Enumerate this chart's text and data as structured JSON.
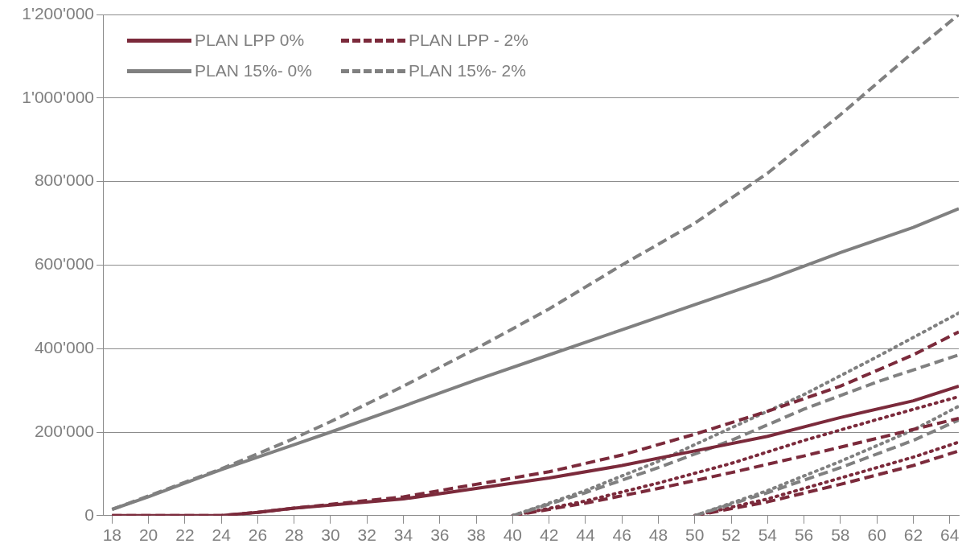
{
  "chart_data": {
    "type": "line",
    "legend": "top left",
    "grid": "y",
    "marker": "none",
    "xlim": [
      17.5,
      64.5
    ],
    "xticks": [
      18,
      20,
      22,
      24,
      26,
      28,
      30,
      32,
      34,
      36,
      38,
      40,
      42,
      44,
      46,
      48,
      50,
      52,
      54,
      56,
      58,
      60,
      62,
      64
    ],
    "ylim": [
      0,
      1200000
    ],
    "yticks": [
      {
        "value": 0,
        "label": "0"
      },
      {
        "value": 200000,
        "label": "200'000"
      },
      {
        "value": 400000,
        "label": "400'000"
      },
      {
        "value": 600000,
        "label": "600'000"
      },
      {
        "value": 800000,
        "label": "800'000"
      },
      {
        "value": 1000000,
        "label": "1'000'000"
      },
      {
        "value": 1200000,
        "label": "1'200'000"
      }
    ],
    "series": [
      {
        "name": "PLAN LPP 0%",
        "color": "#7b2a3b",
        "line_style": "solid",
        "x": [
          18,
          20,
          22,
          24,
          26,
          28,
          30,
          34,
          38,
          42,
          46,
          50,
          54,
          58,
          62,
          64.5
        ],
        "values": [
          0,
          0,
          0,
          0,
          8000,
          18000,
          25000,
          40000,
          65000,
          90000,
          120000,
          155000,
          190000,
          235000,
          275000,
          310000
        ]
      },
      {
        "name": "PLAN LPP - 2%",
        "color": "#7b2a3b",
        "line_style": "dashed",
        "x": [
          18,
          20,
          22,
          24,
          26,
          28,
          30,
          34,
          38,
          42,
          46,
          50,
          54,
          58,
          62,
          64.5
        ],
        "values": [
          0,
          0,
          0,
          0,
          8000,
          18000,
          27000,
          45000,
          75000,
          105000,
          145000,
          195000,
          250000,
          310000,
          385000,
          440000
        ]
      },
      {
        "name": "PLAN 15%- 0%",
        "color": "#808080",
        "line_style": "solid",
        "x": [
          18,
          20,
          22,
          24,
          26,
          28,
          30,
          34,
          38,
          42,
          46,
          50,
          54,
          58,
          62,
          64.5
        ],
        "values": [
          15000,
          45000,
          78000,
          110000,
          140000,
          170000,
          200000,
          262000,
          325000,
          385000,
          445000,
          505000,
          565000,
          630000,
          690000,
          735000
        ]
      },
      {
        "name": "PLAN 15%- 2%",
        "color": "#808080",
        "line_style": "dashed",
        "x": [
          18,
          20,
          22,
          24,
          26,
          28,
          30,
          34,
          38,
          42,
          46,
          50,
          54,
          58,
          62,
          64.5
        ],
        "values": [
          15000,
          47000,
          80000,
          112000,
          148000,
          185000,
          225000,
          310000,
          400000,
          495000,
          600000,
          700000,
          820000,
          960000,
          1110000,
          1200000
        ]
      },
      {
        "color": "#808080",
        "line_style": "dotted",
        "x": [
          40,
          44,
          48,
          52,
          56,
          60,
          64.5
        ],
        "values": [
          0,
          60000,
          130000,
          210000,
          290000,
          380000,
          485000
        ]
      },
      {
        "color": "#808080",
        "line_style": "dashed",
        "x": [
          40,
          44,
          48,
          52,
          56,
          60,
          64.5
        ],
        "values": [
          0,
          55000,
          115000,
          180000,
          255000,
          320000,
          385000
        ]
      },
      {
        "color": "#7b2a3b",
        "line_style": "dotted",
        "x": [
          40,
          44,
          48,
          52,
          56,
          60,
          64.5
        ],
        "values": [
          0,
          35000,
          78000,
          125000,
          180000,
          230000,
          285000
        ]
      },
      {
        "color": "#7b2a3b",
        "line_style": "dashed",
        "x": [
          40,
          44,
          48,
          52,
          56,
          60,
          64.5
        ],
        "values": [
          0,
          30000,
          65000,
          103000,
          143000,
          185000,
          233000
        ]
      },
      {
        "color": "#808080",
        "line_style": "dotted",
        "x": [
          50,
          54,
          58,
          62,
          64.5
        ],
        "values": [
          0,
          60000,
          130000,
          205000,
          262000
        ]
      },
      {
        "color": "#808080",
        "line_style": "dashed",
        "x": [
          50,
          54,
          58,
          62,
          64.5
        ],
        "values": [
          0,
          55000,
          115000,
          180000,
          229000
        ]
      },
      {
        "color": "#7b2a3b",
        "line_style": "dotted",
        "x": [
          50,
          54,
          58,
          62,
          64.5
        ],
        "values": [
          0,
          40000,
          90000,
          140000,
          176000
        ]
      },
      {
        "color": "#7b2a3b",
        "line_style": "dashed",
        "x": [
          50,
          54,
          58,
          62,
          64.5
        ],
        "values": [
          0,
          33000,
          75000,
          120000,
          155000
        ]
      }
    ]
  }
}
